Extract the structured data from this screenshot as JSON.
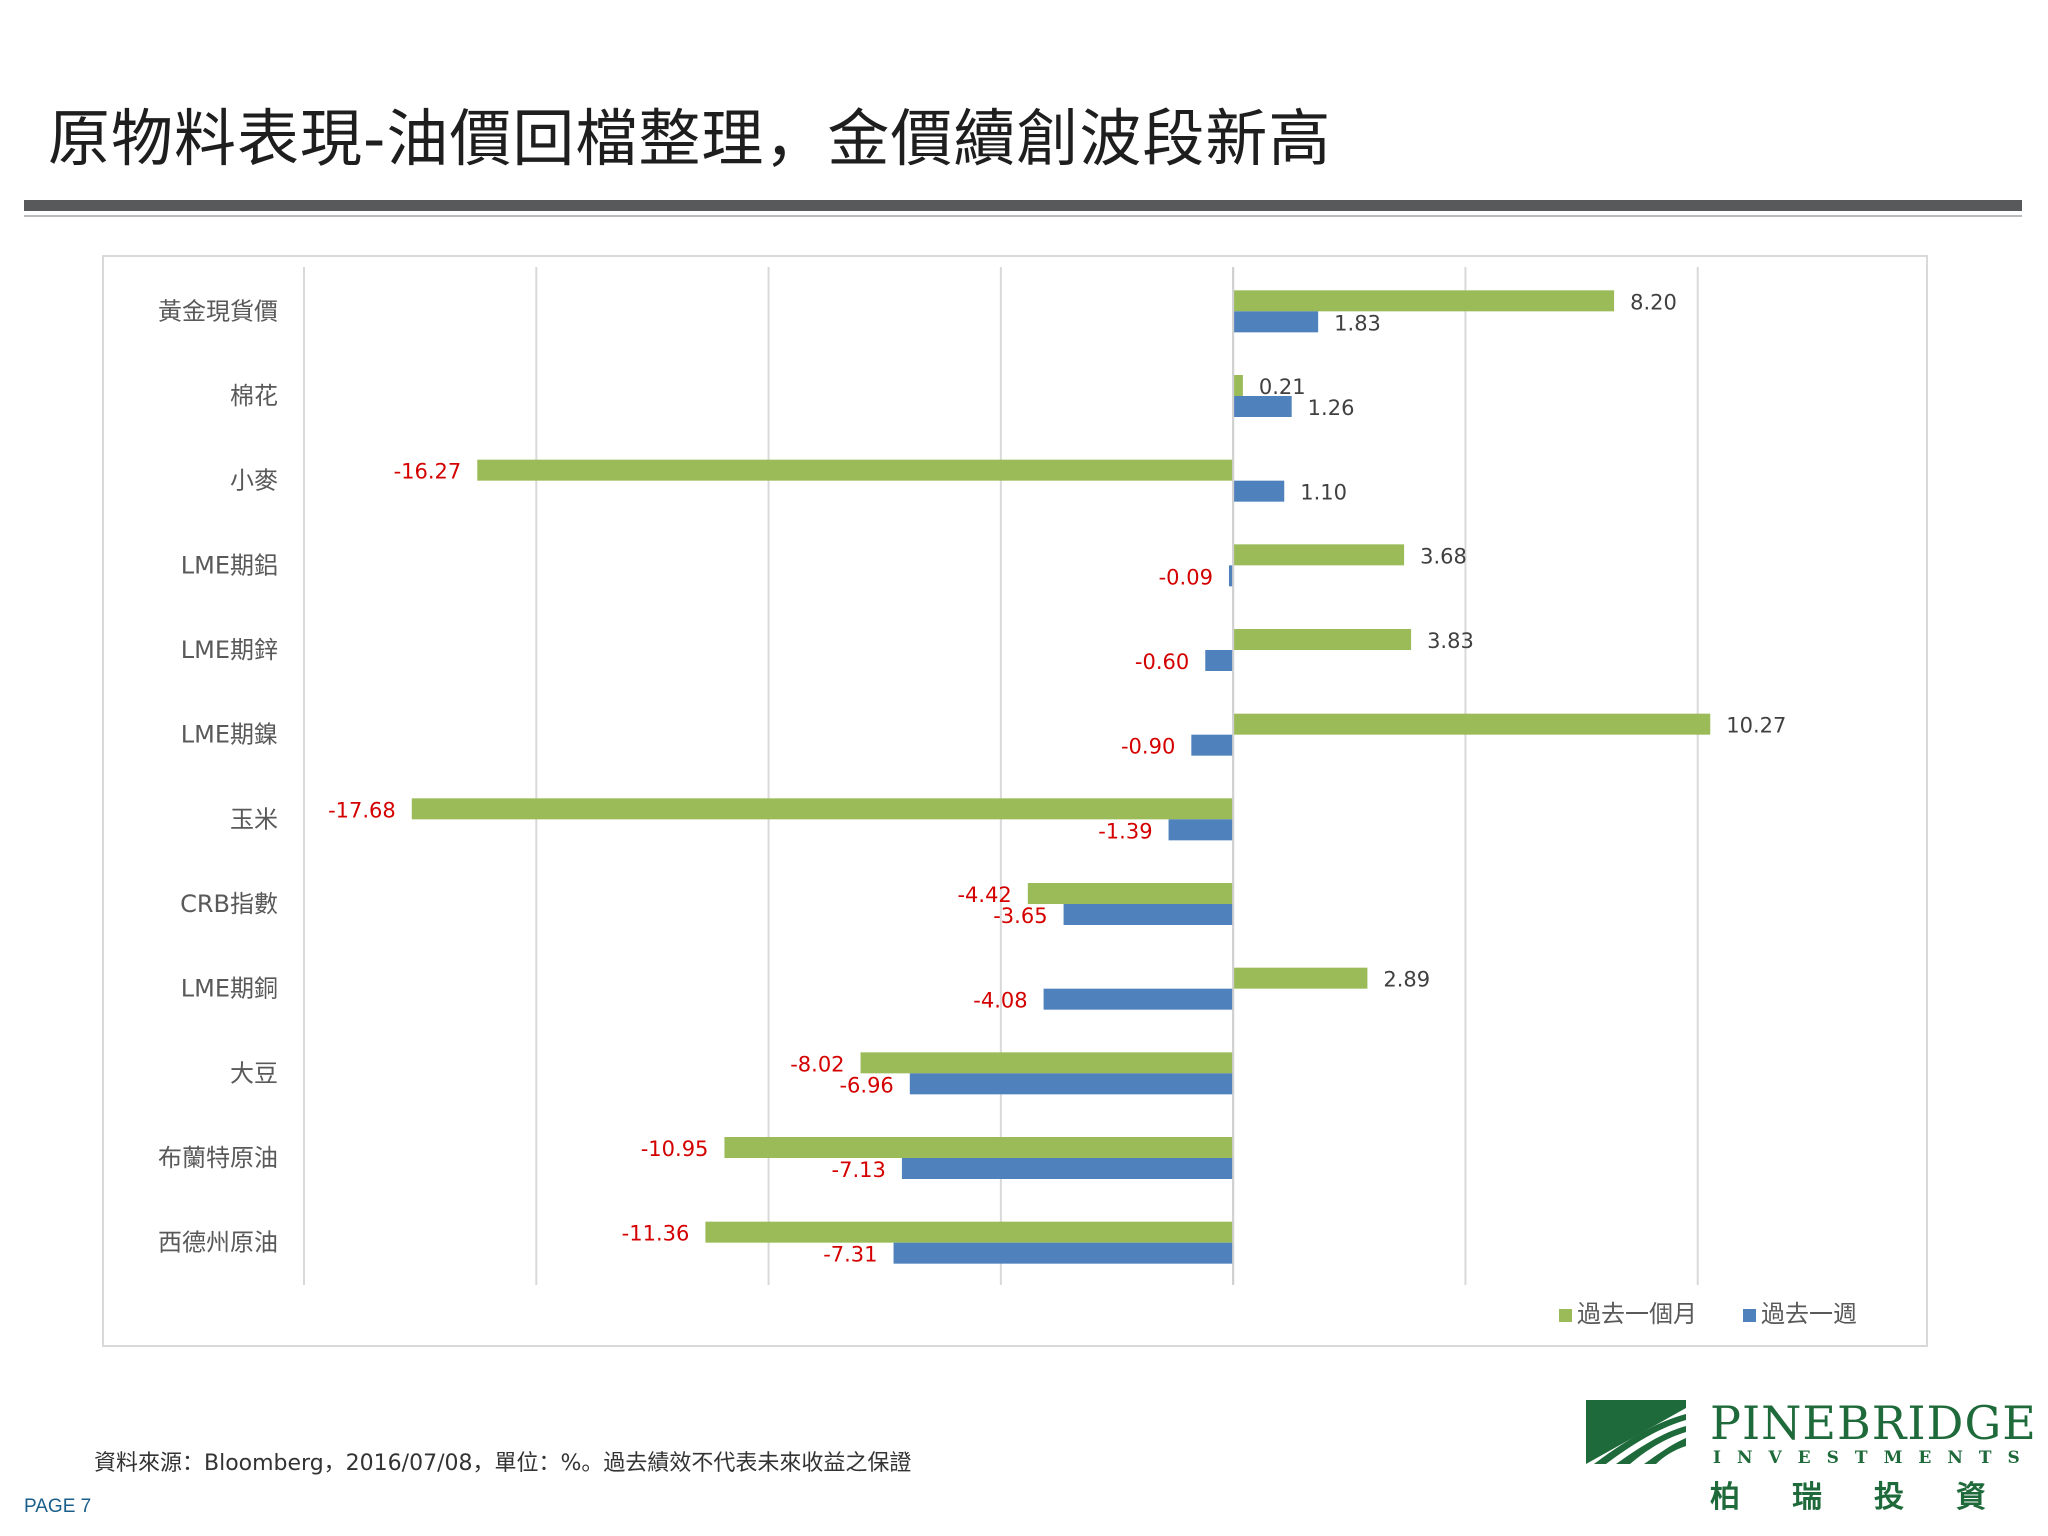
{
  "slide": {
    "title": "原物料表現-油價回檔整理，金價續創波段新高",
    "source_note": "資料來源：Bloomberg，2016/07/08，單位：%。過去績效不代表未來收益之保證",
    "page_label": "PAGE 7"
  },
  "logo": {
    "name": "PINEBRIDGE",
    "subtitle": "INVESTMENTS",
    "chinese": "柏瑞投資"
  },
  "colors": {
    "month": "#9bbb59",
    "week": "#4f81bd",
    "negative_label": "#d40000",
    "positive_label": "#404040"
  },
  "chart_data": {
    "type": "bar",
    "orientation": "horizontal",
    "categories": [
      "黃金現貨價",
      "棉花",
      "小麥",
      "LME期鋁",
      "LME期鋅",
      "LME期鎳",
      "玉米",
      "CRB指數",
      "LME期銅",
      "大豆",
      "布蘭特原油",
      "西德州原油"
    ],
    "series": [
      {
        "name": "過去一個月",
        "values": [
          8.2,
          0.21,
          -16.27,
          3.68,
          3.83,
          10.27,
          -17.68,
          -4.42,
          2.89,
          -8.02,
          -10.95,
          -11.36
        ]
      },
      {
        "name": "過去一週",
        "values": [
          1.83,
          1.26,
          1.1,
          -0.09,
          -0.6,
          -0.9,
          -1.39,
          -3.65,
          -4.08,
          -6.96,
          -7.13,
          -7.31
        ]
      }
    ],
    "xlim": [
      -20,
      15
    ],
    "grid": true,
    "legend_position": "bottom-right",
    "data_labels": true
  }
}
